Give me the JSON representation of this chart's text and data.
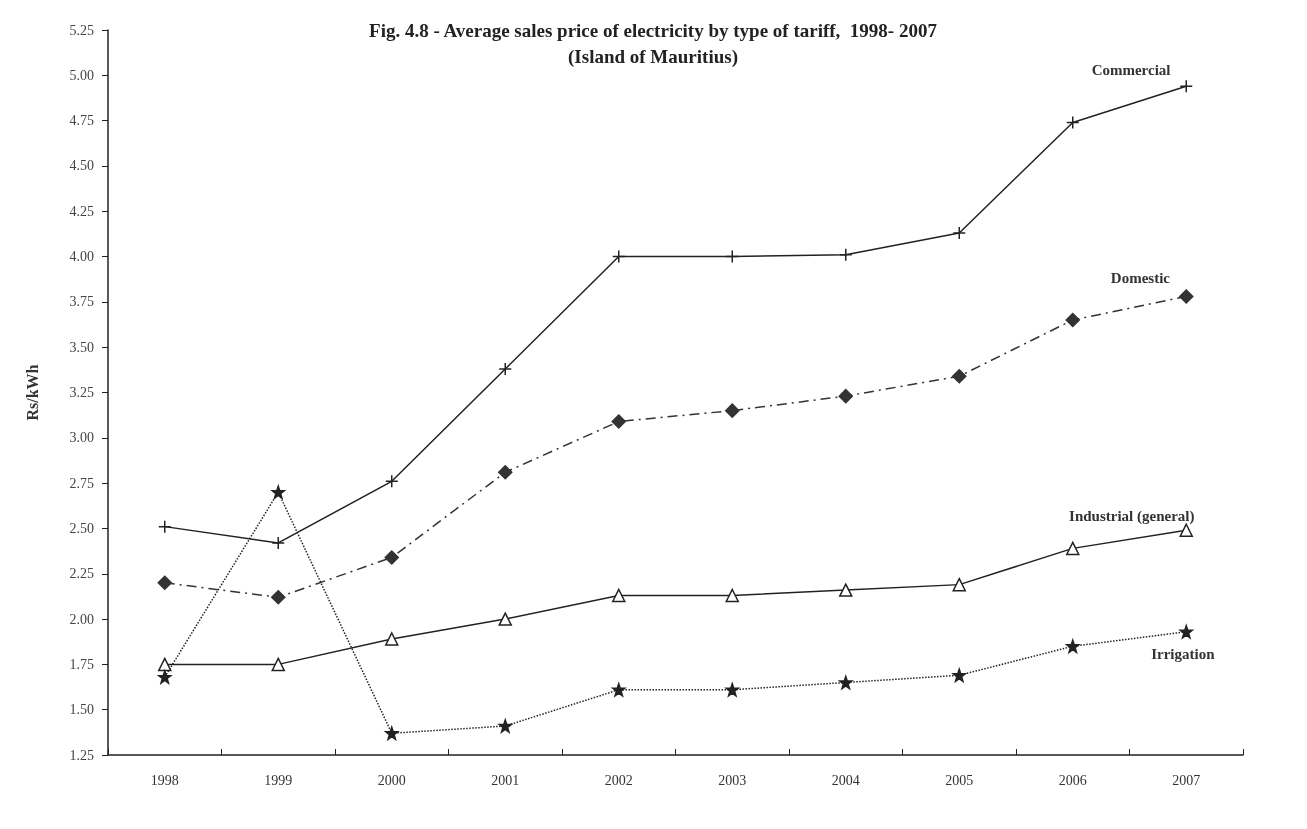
{
  "chart_data": {
    "type": "line",
    "title": "Fig. 4.8 - Average sales price of electricity by type of tariff,  1998- 2007",
    "subtitle": "(Island of Mauritius)",
    "ylabel": "Rs/kWh",
    "categories": [
      "1998",
      "1999",
      "2000",
      "2001",
      "2002",
      "2003",
      "2004",
      "2005",
      "2006",
      "2007"
    ],
    "ylim": [
      1.25,
      5.25
    ],
    "yticks": [
      1.25,
      {
        "value": 1.5,
        "label": "1.50"
      },
      1.75,
      {
        "value": 2,
        "label": "2.00"
      },
      2.25,
      {
        "value": 2.5,
        "label": "2.50"
      },
      2.75,
      {
        "value": 3,
        "label": "3.00"
      },
      3.25,
      {
        "value": 3.5,
        "label": "3.50"
      },
      3.75,
      {
        "value": 4,
        "label": "4.00"
      },
      4.25,
      {
        "value": 4.5,
        "label": "4.50"
      },
      4.75,
      {
        "value": 5,
        "label": "5.00"
      },
      5.25
    ],
    "grid": false,
    "legend": false,
    "series": [
      {
        "name": "Commercial",
        "color": "#222222",
        "marker": "cross",
        "line_style": "solid",
        "values": [
          2.51,
          2.42,
          2.76,
          3.38,
          4.0,
          4.0,
          4.01,
          4.13,
          4.74,
          4.94
        ]
      },
      {
        "name": "Domestic",
        "color": "#333333",
        "marker": "diamond",
        "line_style": "dashed",
        "values": [
          2.2,
          2.12,
          2.34,
          2.81,
          3.09,
          3.15,
          3.23,
          3.34,
          3.65,
          3.78
        ]
      },
      {
        "name": "Industrial (general)",
        "color": "#222222",
        "marker": "triangle",
        "line_style": "solid",
        "values": [
          1.75,
          1.75,
          1.89,
          2.0,
          2.13,
          2.13,
          2.16,
          2.19,
          2.39,
          2.49
        ]
      },
      {
        "name": "Irrigation",
        "color": "#222222",
        "marker": "star",
        "line_style": "dotted",
        "values": [
          1.68,
          2.7,
          1.37,
          1.41,
          1.61,
          1.61,
          1.65,
          1.69,
          1.85,
          1.93
        ]
      }
    ]
  }
}
